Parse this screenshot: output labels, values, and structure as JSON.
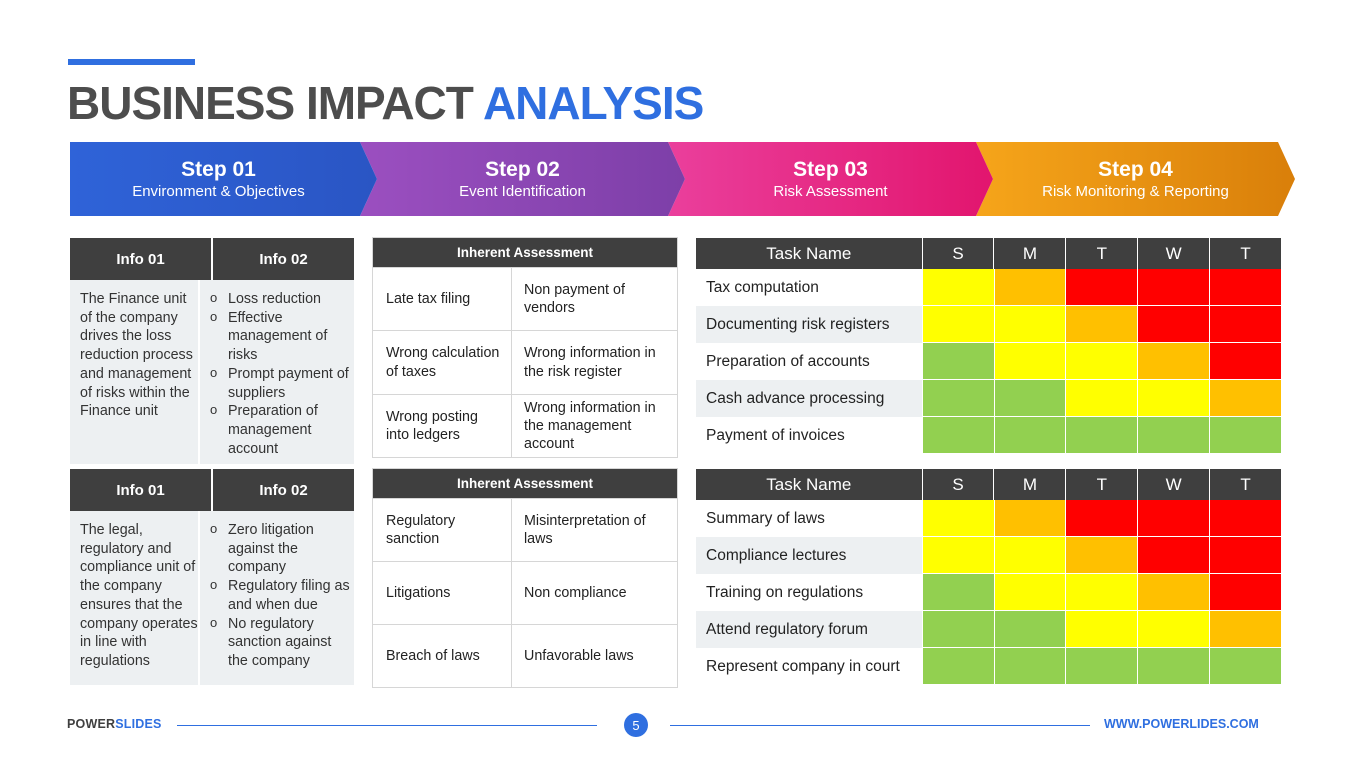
{
  "title": {
    "part1": "BUSINESS IMPACT ",
    "part2": "ANALYSIS"
  },
  "steps": [
    {
      "label": "Step 01",
      "desc": "Environment & Objectives"
    },
    {
      "label": "Step 02",
      "desc": "Event Identification"
    },
    {
      "label": "Step 03",
      "desc": "Risk Assessment"
    },
    {
      "label": "Step 04",
      "desc": "Risk Monitoring & Reporting"
    }
  ],
  "info_panels": [
    {
      "header1": "Info 01",
      "header2": "Info 02",
      "text": "The Finance unit of the company drives the loss reduction process and management of risks within the Finance unit",
      "bullets": [
        "Loss reduction",
        "Effective management of risks",
        "Prompt payment of suppliers",
        "Preparation of management account"
      ]
    },
    {
      "header1": "Info 01",
      "header2": "Info 02",
      "text": "The legal, regulatory and compliance unit of the company ensures that the company operates in line with regulations",
      "bullets": [
        "Zero litigation against the company",
        "Regulatory filing as and when due",
        "No regulatory sanction against the company"
      ]
    }
  ],
  "assessments": [
    {
      "header": "Inherent Assessment",
      "rows": [
        [
          "Late tax filing",
          "Non payment of vendors"
        ],
        [
          "Wrong calculation of taxes",
          "Wrong information in the risk register"
        ],
        [
          "Wrong posting into ledgers",
          "Wrong information in the management account"
        ]
      ]
    },
    {
      "header": "Inherent Assessment",
      "rows": [
        [
          "Regulatory sanction",
          "Misinterpretation of laws"
        ],
        [
          "Litigations",
          "Non compliance"
        ],
        [
          "Breach of laws",
          "Unfavorable laws"
        ]
      ]
    }
  ],
  "colors": {
    "green": "#92d050",
    "yellow": "#ffff00",
    "amber": "#ffc000",
    "red": "#ff0000"
  },
  "heat_tables": [
    {
      "task_header": "Task Name",
      "days": [
        "S",
        "M",
        "T",
        "W",
        "T"
      ],
      "rows": [
        {
          "task": "Tax computation",
          "cells": [
            "yellow",
            "amber",
            "red",
            "red",
            "red"
          ]
        },
        {
          "task": "Documenting risk registers",
          "cells": [
            "yellow",
            "yellow",
            "amber",
            "red",
            "red"
          ]
        },
        {
          "task": "Preparation of accounts",
          "cells": [
            "green",
            "yellow",
            "yellow",
            "amber",
            "red"
          ]
        },
        {
          "task": "Cash advance processing",
          "cells": [
            "green",
            "green",
            "yellow",
            "yellow",
            "amber"
          ]
        },
        {
          "task": "Payment of invoices",
          "cells": [
            "green",
            "green",
            "green",
            "green",
            "green"
          ]
        }
      ]
    },
    {
      "task_header": "Task Name",
      "days": [
        "S",
        "M",
        "T",
        "W",
        "T"
      ],
      "rows": [
        {
          "task": "Summary of laws",
          "cells": [
            "yellow",
            "amber",
            "red",
            "red",
            "red"
          ]
        },
        {
          "task": "Compliance lectures",
          "cells": [
            "yellow",
            "yellow",
            "amber",
            "red",
            "red"
          ]
        },
        {
          "task": "Training on regulations",
          "cells": [
            "green",
            "yellow",
            "yellow",
            "amber",
            "red"
          ]
        },
        {
          "task": "Attend regulatory forum",
          "cells": [
            "green",
            "green",
            "yellow",
            "yellow",
            "amber"
          ]
        },
        {
          "task": "Represent company in court",
          "cells": [
            "green",
            "green",
            "green",
            "green",
            "green"
          ]
        }
      ]
    }
  ],
  "footer": {
    "brand1": "POWER",
    "brand2": "SLIDES",
    "page": "5",
    "url": "WWW.POWERLIDES.COM"
  }
}
